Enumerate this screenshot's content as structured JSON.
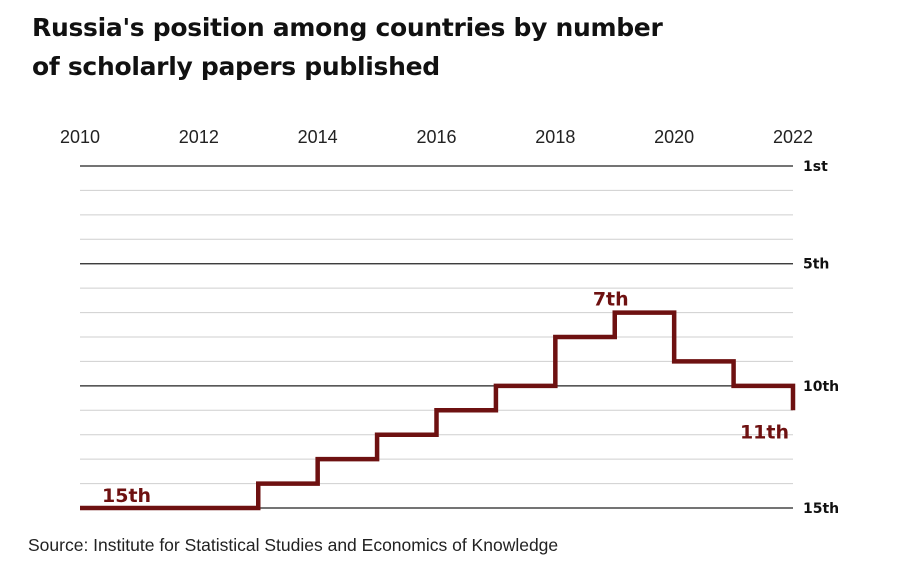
{
  "title": {
    "line1": "Russia's position among countries by number",
    "line2": "of scholarly papers published"
  },
  "source": "Source: Institute for Statistical Studies and Economics of Knowledge",
  "colors": {
    "line": "#6e1111",
    "label": "#6e1111",
    "major_grid": "#222222",
    "minor_grid": "#cfcfcf"
  },
  "chart_data": {
    "type": "line",
    "step": "post",
    "x_ticks": [
      "2010",
      "2012",
      "2014",
      "2016",
      "2018",
      "2020",
      "2022"
    ],
    "x_tick_values": [
      2010,
      2012,
      2014,
      2016,
      2018,
      2020,
      2022
    ],
    "y_ticks": [
      "1st",
      "5th",
      "10th",
      "15th"
    ],
    "y_tick_values": [
      1,
      5,
      10,
      15
    ],
    "xlim": [
      2010,
      2022
    ],
    "ylim": [
      15,
      1
    ],
    "y_inverted": true,
    "grid": true,
    "x": [
      2010,
      2013,
      2014,
      2015,
      2016,
      2017,
      2018,
      2019,
      2020,
      2021,
      2022
    ],
    "y": [
      15,
      14,
      13,
      12,
      11,
      10,
      8,
      7,
      9,
      10,
      11
    ],
    "annotations": [
      {
        "text": "15th",
        "x": 2010,
        "y": 15
      },
      {
        "text": "7th",
        "x": 2019,
        "y": 7
      },
      {
        "text": "11th",
        "x": 2022,
        "y": 11
      }
    ]
  }
}
